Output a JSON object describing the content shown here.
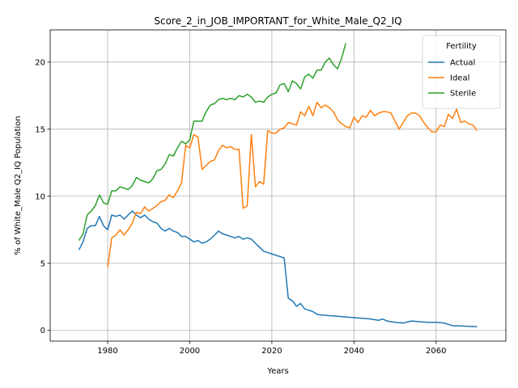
{
  "chart_data": {
    "type": "line",
    "title": "Score_2_in_JOB_IMPORTANT_for_White_Male_Q2_IQ",
    "xlabel": "Years",
    "ylabel": "% of White_Male Q2_IQ Population",
    "xlim": [
      1966,
      2077
    ],
    "ylim": [
      -0.8,
      22.4
    ],
    "xticks": [
      1980,
      2000,
      2020,
      2040,
      2060
    ],
    "yticks": [
      0,
      5,
      10,
      15,
      20
    ],
    "grid": true,
    "legend": {
      "title": "Fertility",
      "position": "top-right"
    },
    "series": [
      {
        "name": "Actual",
        "color": "#1f77b4",
        "points": [
          [
            1973,
            6.0
          ],
          [
            1974,
            6.6
          ],
          [
            1975,
            7.6
          ],
          [
            1976,
            7.8
          ],
          [
            1977,
            7.8
          ],
          [
            1978,
            8.5
          ],
          [
            1979,
            7.8
          ],
          [
            1980,
            7.5
          ],
          [
            1981,
            8.6
          ],
          [
            1982,
            8.5
          ],
          [
            1983,
            8.6
          ],
          [
            1984,
            8.3
          ],
          [
            1985,
            8.6
          ],
          [
            1986,
            8.9
          ],
          [
            1987,
            8.6
          ],
          [
            1988,
            8.4
          ],
          [
            1989,
            8.6
          ],
          [
            1990,
            8.3
          ],
          [
            1991,
            8.1
          ],
          [
            1992,
            8.0
          ],
          [
            1993,
            7.6
          ],
          [
            1994,
            7.4
          ],
          [
            1995,
            7.6
          ],
          [
            1996,
            7.4
          ],
          [
            1997,
            7.3
          ],
          [
            1998,
            7.0
          ],
          [
            1999,
            7.0
          ],
          [
            2000,
            6.8
          ],
          [
            2001,
            6.6
          ],
          [
            2002,
            6.7
          ],
          [
            2003,
            6.5
          ],
          [
            2004,
            6.6
          ],
          [
            2005,
            6.8
          ],
          [
            2006,
            7.1
          ],
          [
            2007,
            7.4
          ],
          [
            2008,
            7.2
          ],
          [
            2009,
            7.1
          ],
          [
            2010,
            7.0
          ],
          [
            2011,
            6.9
          ],
          [
            2012,
            7.0
          ],
          [
            2013,
            6.8
          ],
          [
            2014,
            6.9
          ],
          [
            2015,
            6.8
          ],
          [
            2016,
            6.5
          ],
          [
            2017,
            6.2
          ],
          [
            2018,
            5.9
          ],
          [
            2019,
            5.8
          ],
          [
            2020,
            5.7
          ],
          [
            2021,
            5.6
          ],
          [
            2022,
            5.5
          ],
          [
            2023,
            5.4
          ],
          [
            2024,
            2.4
          ],
          [
            2025,
            2.2
          ],
          [
            2026,
            1.8
          ],
          [
            2027,
            2.0
          ],
          [
            2028,
            1.6
          ],
          [
            2029,
            1.5
          ],
          [
            2030,
            1.4
          ],
          [
            2031,
            1.2
          ],
          [
            2032,
            1.15
          ],
          [
            2034,
            1.1
          ],
          [
            2036,
            1.05
          ],
          [
            2038,
            1.0
          ],
          [
            2040,
            0.95
          ],
          [
            2042,
            0.9
          ],
          [
            2044,
            0.85
          ],
          [
            2046,
            0.75
          ],
          [
            2047,
            0.85
          ],
          [
            2048,
            0.7
          ],
          [
            2050,
            0.6
          ],
          [
            2052,
            0.55
          ],
          [
            2054,
            0.7
          ],
          [
            2056,
            0.65
          ],
          [
            2058,
            0.6
          ],
          [
            2060,
            0.6
          ],
          [
            2062,
            0.55
          ],
          [
            2064,
            0.35
          ],
          [
            2066,
            0.33
          ],
          [
            2068,
            0.3
          ],
          [
            2070,
            0.28
          ]
        ]
      },
      {
        "name": "Ideal",
        "color": "#ff7f0e",
        "points": [
          [
            1980,
            4.7
          ],
          [
            1981,
            6.9
          ],
          [
            1982,
            7.1
          ],
          [
            1983,
            7.5
          ],
          [
            1984,
            7.1
          ],
          [
            1985,
            7.5
          ],
          [
            1986,
            8.0
          ],
          [
            1987,
            8.8
          ],
          [
            1988,
            8.7
          ],
          [
            1989,
            9.2
          ],
          [
            1990,
            8.9
          ],
          [
            1991,
            9.1
          ],
          [
            1992,
            9.3
          ],
          [
            1993,
            9.6
          ],
          [
            1994,
            9.7
          ],
          [
            1995,
            10.1
          ],
          [
            1996,
            9.9
          ],
          [
            1997,
            10.4
          ],
          [
            1998,
            11.0
          ],
          [
            1999,
            13.8
          ],
          [
            2000,
            13.6
          ],
          [
            2001,
            14.6
          ],
          [
            2002,
            14.4
          ],
          [
            2003,
            12.0
          ],
          [
            2004,
            12.3
          ],
          [
            2005,
            12.6
          ],
          [
            2006,
            12.7
          ],
          [
            2007,
            13.4
          ],
          [
            2008,
            13.8
          ],
          [
            2009,
            13.6
          ],
          [
            2010,
            13.7
          ],
          [
            2011,
            13.5
          ],
          [
            2012,
            13.5
          ],
          [
            2013,
            9.1
          ],
          [
            2014,
            9.3
          ],
          [
            2015,
            14.6
          ],
          [
            2016,
            10.7
          ],
          [
            2017,
            11.1
          ],
          [
            2018,
            10.9
          ],
          [
            2019,
            14.9
          ],
          [
            2020,
            14.7
          ],
          [
            2021,
            14.7
          ],
          [
            2022,
            15.0
          ],
          [
            2023,
            15.1
          ],
          [
            2024,
            15.5
          ],
          [
            2025,
            15.4
          ],
          [
            2026,
            15.3
          ],
          [
            2027,
            16.3
          ],
          [
            2028,
            16.0
          ],
          [
            2029,
            16.7
          ],
          [
            2030,
            16.0
          ],
          [
            2031,
            17.0
          ],
          [
            2032,
            16.6
          ],
          [
            2033,
            16.8
          ],
          [
            2034,
            16.6
          ],
          [
            2035,
            16.3
          ],
          [
            2036,
            15.7
          ],
          [
            2037,
            15.4
          ],
          [
            2038,
            15.2
          ],
          [
            2039,
            15.1
          ],
          [
            2040,
            15.9
          ],
          [
            2041,
            15.5
          ],
          [
            2042,
            16.0
          ],
          [
            2043,
            15.9
          ],
          [
            2044,
            16.4
          ],
          [
            2045,
            16.0
          ],
          [
            2046,
            16.2
          ],
          [
            2047,
            16.3
          ],
          [
            2048,
            16.3
          ],
          [
            2049,
            16.2
          ],
          [
            2050,
            15.6
          ],
          [
            2051,
            15.0
          ],
          [
            2052,
            15.5
          ],
          [
            2053,
            16.0
          ],
          [
            2054,
            16.2
          ],
          [
            2055,
            16.2
          ],
          [
            2056,
            16.0
          ],
          [
            2057,
            15.5
          ],
          [
            2058,
            15.1
          ],
          [
            2059,
            14.8
          ],
          [
            2060,
            14.8
          ],
          [
            2061,
            15.3
          ],
          [
            2062,
            15.2
          ],
          [
            2063,
            16.1
          ],
          [
            2064,
            15.8
          ],
          [
            2065,
            16.5
          ],
          [
            2066,
            15.5
          ],
          [
            2067,
            15.6
          ],
          [
            2068,
            15.4
          ],
          [
            2069,
            15.3
          ],
          [
            2070,
            14.9
          ]
        ]
      },
      {
        "name": "Sterile",
        "color": "#2ca02c",
        "points": [
          [
            1973,
            6.7
          ],
          [
            1974,
            7.2
          ],
          [
            1975,
            8.6
          ],
          [
            1976,
            8.9
          ],
          [
            1977,
            9.3
          ],
          [
            1978,
            10.1
          ],
          [
            1979,
            9.5
          ],
          [
            1980,
            9.4
          ],
          [
            1981,
            10.4
          ],
          [
            1982,
            10.4
          ],
          [
            1983,
            10.7
          ],
          [
            1984,
            10.6
          ],
          [
            1985,
            10.5
          ],
          [
            1986,
            10.8
          ],
          [
            1987,
            11.4
          ],
          [
            1988,
            11.2
          ],
          [
            1989,
            11.1
          ],
          [
            1990,
            11.0
          ],
          [
            1991,
            11.3
          ],
          [
            1992,
            11.9
          ],
          [
            1993,
            12.0
          ],
          [
            1994,
            12.4
          ],
          [
            1995,
            13.1
          ],
          [
            1996,
            13.0
          ],
          [
            1997,
            13.6
          ],
          [
            1998,
            14.1
          ],
          [
            1999,
            13.9
          ],
          [
            2000,
            14.2
          ],
          [
            2001,
            15.6
          ],
          [
            2002,
            15.6
          ],
          [
            2003,
            15.6
          ],
          [
            2004,
            16.3
          ],
          [
            2005,
            16.8
          ],
          [
            2006,
            16.9
          ],
          [
            2007,
            17.2
          ],
          [
            2008,
            17.3
          ],
          [
            2009,
            17.2
          ],
          [
            2010,
            17.3
          ],
          [
            2011,
            17.2
          ],
          [
            2012,
            17.5
          ],
          [
            2013,
            17.4
          ],
          [
            2014,
            17.6
          ],
          [
            2015,
            17.4
          ],
          [
            2016,
            17.0
          ],
          [
            2017,
            17.1
          ],
          [
            2018,
            17.0
          ],
          [
            2019,
            17.4
          ],
          [
            2020,
            17.6
          ],
          [
            2021,
            17.7
          ],
          [
            2022,
            18.3
          ],
          [
            2023,
            18.4
          ],
          [
            2024,
            17.8
          ],
          [
            2025,
            18.6
          ],
          [
            2026,
            18.4
          ],
          [
            2027,
            18.0
          ],
          [
            2028,
            18.9
          ],
          [
            2029,
            19.1
          ],
          [
            2030,
            18.8
          ],
          [
            2031,
            19.4
          ],
          [
            2032,
            19.4
          ],
          [
            2033,
            20.0
          ],
          [
            2034,
            20.3
          ],
          [
            2035,
            19.8
          ],
          [
            2036,
            19.5
          ],
          [
            2037,
            20.3
          ],
          [
            2038,
            21.4
          ]
        ]
      }
    ]
  }
}
